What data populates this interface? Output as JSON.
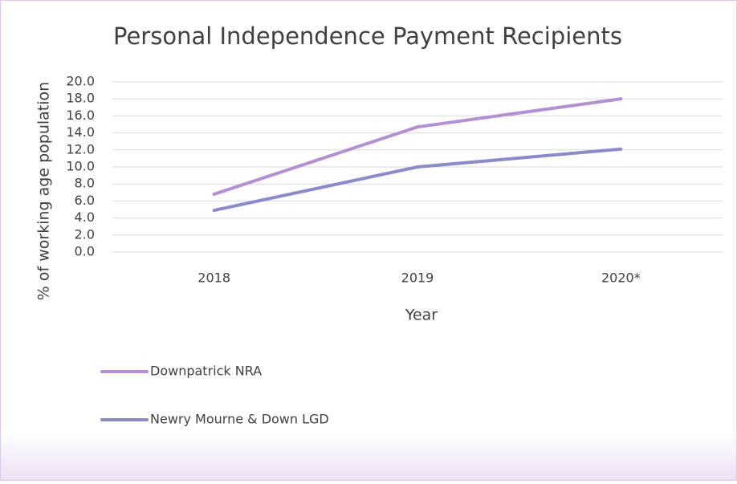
{
  "chart_data": {
    "type": "line",
    "title": "Personal Independence Payment Recipients",
    "x_label": "Year",
    "y_label": "% of working age population",
    "categories": [
      "2018",
      "2019",
      "2020*"
    ],
    "series": [
      {
        "name": "Downpatrick NRA",
        "color": "#b38fd3",
        "values": [
          6.8,
          14.7,
          18.0
        ]
      },
      {
        "name": "Newry Mourne & Down LGD",
        "color": "#8b8acb",
        "values": [
          4.9,
          10.0,
          12.1
        ]
      }
    ],
    "ylim": [
      0,
      20
    ],
    "yticks": [
      {
        "value": 0,
        "label": "0.0"
      },
      {
        "value": 2,
        "label": "2.0"
      },
      {
        "value": 4,
        "label": "4.0"
      },
      {
        "value": 6,
        "label": "6.0"
      },
      {
        "value": 8,
        "label": "8.0"
      },
      {
        "value": 10,
        "label": "10.0"
      },
      {
        "value": 12,
        "label": "12.0"
      },
      {
        "value": 14,
        "label": "14.0"
      },
      {
        "value": 16,
        "label": "16.0"
      },
      {
        "value": 18,
        "label": "18.0"
      },
      {
        "value": 20,
        "label": "20.0"
      }
    ],
    "grid": true,
    "legend": "bottom-left"
  }
}
